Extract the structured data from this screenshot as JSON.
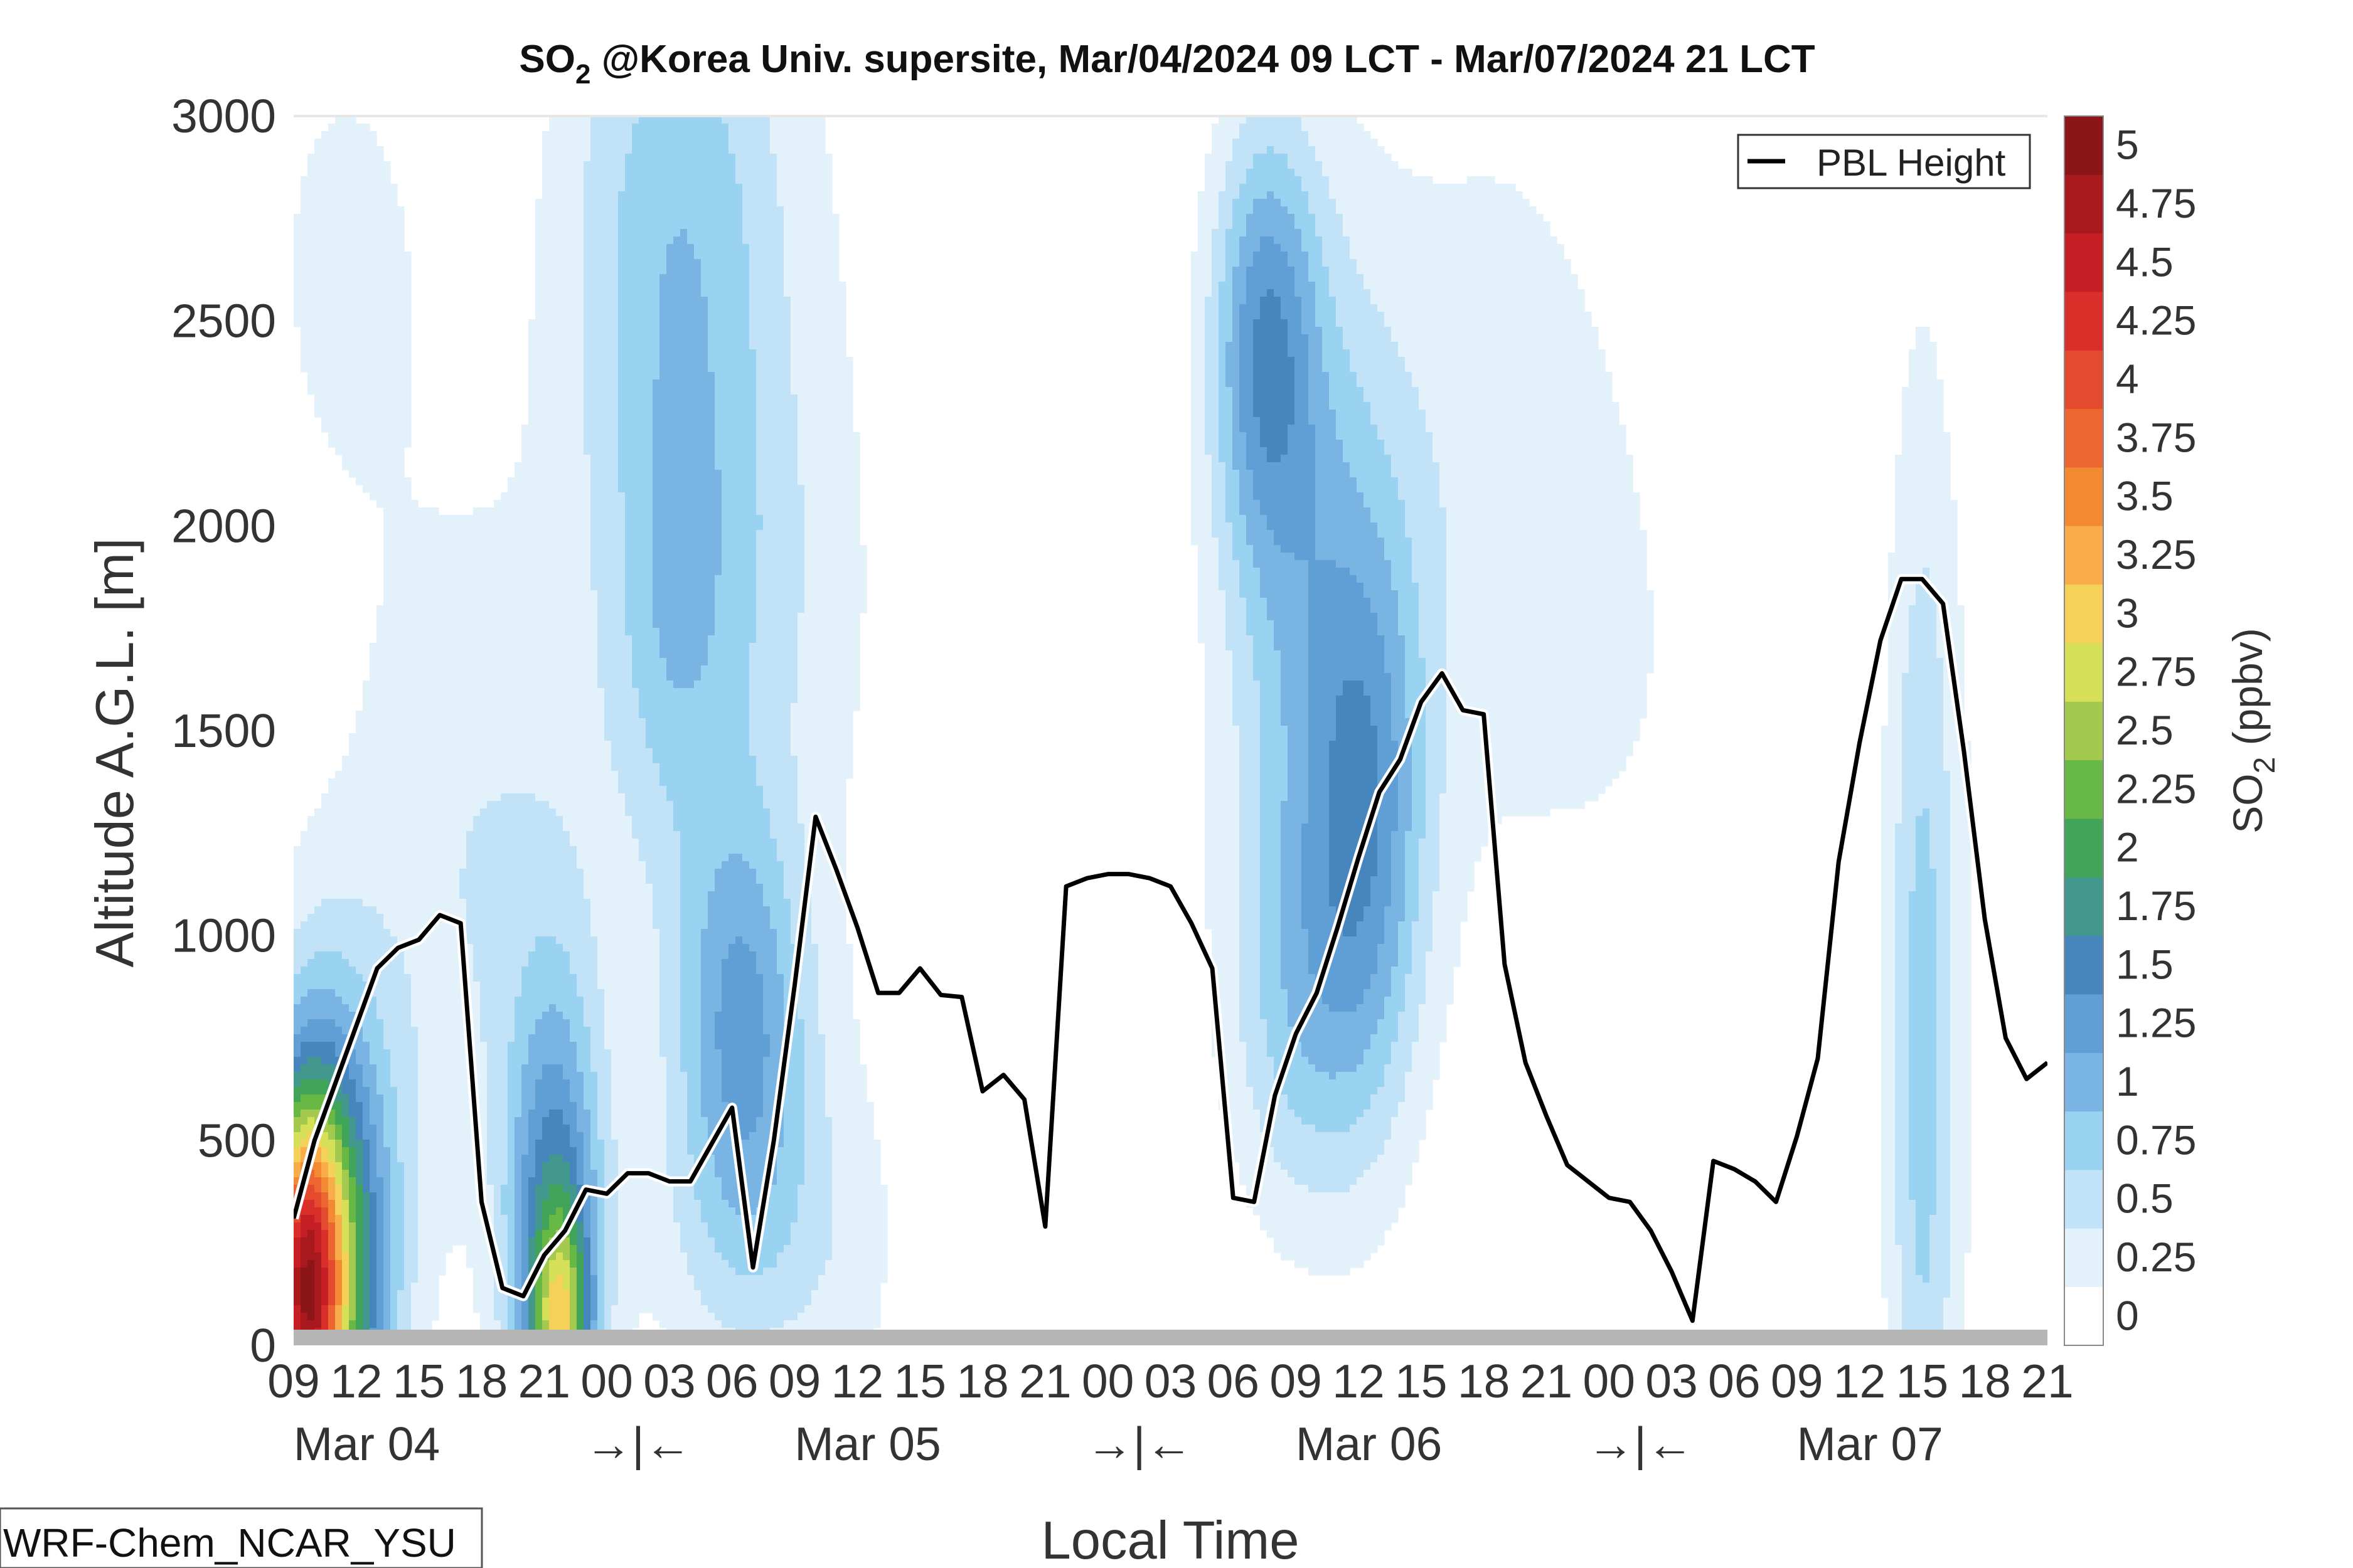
{
  "chart_data": {
    "type": "contour",
    "title_parts": {
      "species": "SO",
      "subscript": "2",
      "rest": " @Korea Univ. supersite, Mar/04/2024 09 LCT - Mar/07/2024 21 LCT"
    },
    "xlabel": "Local Time",
    "ylabel": "Altitude A.G.L. [m]",
    "x_hour_range": [
      9,
      93
    ],
    "ylim": [
      0,
      3000
    ],
    "y_ticks": [
      "0",
      "500",
      "1000",
      "1500",
      "2000",
      "2500",
      "3000"
    ],
    "x_hour_ticks": [
      {
        "h": 9,
        "label": "09"
      },
      {
        "h": 12,
        "label": "12"
      },
      {
        "h": 15,
        "label": "15"
      },
      {
        "h": 18,
        "label": "18"
      },
      {
        "h": 21,
        "label": "21"
      },
      {
        "h": 24,
        "label": "00"
      },
      {
        "h": 27,
        "label": "03"
      },
      {
        "h": 30,
        "label": "06"
      },
      {
        "h": 33,
        "label": "09"
      },
      {
        "h": 36,
        "label": "12"
      },
      {
        "h": 39,
        "label": "15"
      },
      {
        "h": 42,
        "label": "18"
      },
      {
        "h": 45,
        "label": "21"
      },
      {
        "h": 48,
        "label": "00"
      },
      {
        "h": 51,
        "label": "03"
      },
      {
        "h": 54,
        "label": "06"
      },
      {
        "h": 57,
        "label": "09"
      },
      {
        "h": 60,
        "label": "12"
      },
      {
        "h": 63,
        "label": "15"
      },
      {
        "h": 66,
        "label": "18"
      },
      {
        "h": 69,
        "label": "21"
      },
      {
        "h": 72,
        "label": "00"
      },
      {
        "h": 75,
        "label": "03"
      },
      {
        "h": 78,
        "label": "06"
      },
      {
        "h": 81,
        "label": "09"
      },
      {
        "h": 84,
        "label": "12"
      },
      {
        "h": 87,
        "label": "15"
      },
      {
        "h": 90,
        "label": "18"
      },
      {
        "h": 93,
        "label": "21"
      }
    ],
    "date_labels": [
      {
        "h": 12.5,
        "label": "Mar 04"
      },
      {
        "h": 36.5,
        "label": "Mar 05"
      },
      {
        "h": 60.5,
        "label": "Mar 06"
      },
      {
        "h": 84.5,
        "label": "Mar 07"
      }
    ],
    "day_markers": [
      {
        "h": 25.5,
        "label": "→|←"
      },
      {
        "h": 49.5,
        "label": "→|←"
      },
      {
        "h": 73.5,
        "label": "→|←"
      }
    ],
    "colorbar": {
      "label_species": "SO",
      "label_subscript": "2",
      "label_unit": " (ppbv)",
      "levels": [
        "0",
        "0.25",
        "0.5",
        "0.75",
        "1",
        "1.25",
        "1.5",
        "1.75",
        "2",
        "2.25",
        "2.5",
        "2.75",
        "3",
        "3.25",
        "3.5",
        "3.75",
        "4",
        "4.25",
        "4.5",
        "4.75",
        "5"
      ],
      "colors": [
        "#ffffff",
        "#e3f1fb",
        "#c2e3f7",
        "#9ad2f1",
        "#7ab4e2",
        "#5f9fd6",
        "#4686bd",
        "#43988d",
        "#41a559",
        "#68b846",
        "#a3c94e",
        "#d5df58",
        "#f6d15a",
        "#f8ac4a",
        "#f38a33",
        "#ec6631",
        "#e34a2e",
        "#d92e29",
        "#c51f25",
        "#a8191d",
        "#8b1518"
      ]
    },
    "series": [
      {
        "name": "PBL Height",
        "color": "#000000",
        "x": [
          9,
          10,
          11,
          12,
          13,
          14,
          15,
          16,
          17,
          18,
          19,
          20,
          21,
          22,
          23,
          24,
          25,
          26,
          27,
          28,
          29,
          30,
          31,
          32,
          33,
          34,
          35,
          36,
          37,
          38,
          39,
          40,
          41,
          42,
          43,
          44,
          45,
          46,
          47,
          48,
          49,
          50,
          51,
          52,
          53,
          54,
          55,
          56,
          57,
          58,
          59,
          60,
          61,
          62,
          63,
          64,
          65,
          66,
          67,
          68,
          69,
          70,
          71,
          72,
          73,
          74,
          75,
          76,
          77,
          78,
          79,
          80,
          81,
          82,
          83,
          84,
          85,
          86,
          87,
          88,
          89,
          90,
          91,
          92,
          93
        ],
        "y": [
          310,
          500,
          640,
          780,
          920,
          970,
          990,
          1050,
          1030,
          350,
          140,
          120,
          220,
          280,
          380,
          370,
          420,
          420,
          400,
          400,
          490,
          580,
          190,
          500,
          880,
          1290,
          1160,
          1020,
          860,
          860,
          920,
          855,
          850,
          620,
          660,
          600,
          290,
          1120,
          1140,
          1150,
          1150,
          1140,
          1120,
          1030,
          920,
          360,
          350,
          610,
          760,
          860,
          1020,
          1190,
          1350,
          1430,
          1570,
          1640,
          1550,
          1540,
          930,
          690,
          560,
          440,
          400,
          360,
          350,
          280,
          180,
          60,
          450,
          430,
          400,
          350,
          510,
          700,
          1180,
          1470,
          1720,
          1870,
          1870,
          1810,
          1450,
          1040,
          750,
          650,
          690
        ]
      }
    ],
    "legend": {
      "entries": [
        "PBL Height"
      ],
      "placement": "top-right"
    },
    "footer_note": "WRF-Chem_NCAR_YSU",
    "field_blobs": [
      {
        "h": 11.5,
        "z": 2650,
        "sh": 3.4,
        "sz": 480,
        "amp": 0.32
      },
      {
        "h": 18.0,
        "z": 1150,
        "sh": 5.0,
        "sz": 650,
        "amp": 0.5
      },
      {
        "h": 27.5,
        "z": 2700,
        "sh": 4.0,
        "sz": 600,
        "amp": 0.95
      },
      {
        "h": 30.5,
        "z": 1800,
        "sh": 3.5,
        "sz": 420,
        "amp": 0.45
      },
      {
        "h": 30.5,
        "z": 800,
        "sh": 2.3,
        "sz": 380,
        "amp": 1.25
      },
      {
        "h": 31.5,
        "z": 250,
        "sh": 4.0,
        "sz": 300,
        "amp": 0.45
      },
      {
        "h": 27.0,
        "z": 1700,
        "sh": 2.0,
        "sz": 400,
        "amp": 0.45
      },
      {
        "h": 36.0,
        "z": 600,
        "sh": 2.0,
        "sz": 2400,
        "amp": 0.12
      },
      {
        "h": 55.5,
        "z": 2450,
        "sh": 1.8,
        "sz": 380,
        "amp": 1.2
      },
      {
        "h": 58.0,
        "z": 1700,
        "sh": 3.2,
        "sz": 750,
        "amp": 0.9
      },
      {
        "h": 60.5,
        "z": 1250,
        "sh": 2.0,
        "sz": 500,
        "amp": 0.9
      },
      {
        "h": 57.0,
        "z": 800,
        "sh": 2.4,
        "sz": 350,
        "amp": 0.5
      },
      {
        "h": 66.0,
        "z": 2200,
        "sh": 4.0,
        "sz": 700,
        "amp": 0.3
      },
      {
        "h": 74.0,
        "z": 1600,
        "sh": 6.0,
        "sz": 1000,
        "amp": 0.22
      },
      {
        "h": 87.0,
        "z": 700,
        "sh": 1.2,
        "sz": 1100,
        "amp": 0.8
      },
      {
        "h": 92.0,
        "z": 1000,
        "sh": 3.0,
        "sz": 1200,
        "amp": 0.2
      },
      {
        "h": 10.5,
        "z": 180,
        "sh": 2.2,
        "sz": 450,
        "amp": 2.5
      },
      {
        "h": 9.5,
        "z": 120,
        "sh": 1.2,
        "sz": 300,
        "amp": 2.8
      },
      {
        "h": 21.5,
        "z": 200,
        "sh": 1.6,
        "sz": 450,
        "amp": 1.7
      },
      {
        "h": 21.8,
        "z": 50,
        "sh": 0.9,
        "sz": 180,
        "amp": 1.5
      }
    ]
  }
}
